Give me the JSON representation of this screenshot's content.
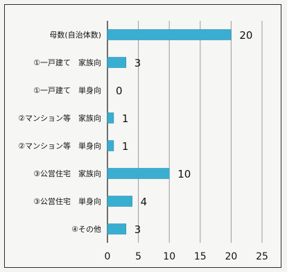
{
  "chart_data": {
    "type": "bar",
    "orientation": "horizontal",
    "categories": [
      "母数(自治体数)",
      "①一戸建て　家族向",
      "①一戸建て　単身向",
      "②マンション等　家族向",
      "②マンション等　単身向",
      "③公営住宅　家族向",
      "③公営住宅　単身向",
      "④その他"
    ],
    "values": [
      20,
      3,
      0,
      1,
      1,
      10,
      4,
      3
    ],
    "xlim": [
      0,
      25
    ],
    "xticks": [
      0,
      5,
      10,
      15,
      20,
      25
    ],
    "grid": true,
    "legend": "none",
    "colors": {
      "bar": "#3aaed0",
      "bar_edge": "#2a8fb0",
      "grid": "#9a9a9a",
      "axis": "#333333"
    }
  }
}
